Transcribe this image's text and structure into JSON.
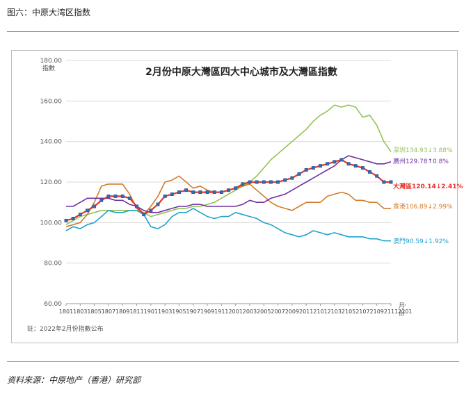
{
  "figure_caption": "图六：中原大湾区指数",
  "source_note": "资料来源：中原地产（香港）研究部",
  "chart_data": {
    "type": "line",
    "title": "2月份中原大灣區四大中心城市及大灣區指數",
    "ylabel": "指數",
    "xlabel": "月份",
    "footnote": "註：2022年2月份指數公布",
    "ylim": [
      60,
      180
    ],
    "yticks": [
      "60.00",
      "80.00",
      "100.00",
      "120.00",
      "140.00",
      "160.00",
      "180.00"
    ],
    "x_ticklabels": [
      "1801",
      "1803",
      "1805",
      "1807",
      "1809",
      "1811",
      "1901",
      "1903",
      "1905",
      "1907",
      "1909",
      "1911",
      "2001",
      "2003",
      "2005",
      "2007",
      "2009",
      "2011",
      "2101",
      "2103",
      "2105",
      "2107",
      "2109",
      "2111",
      "2201"
    ],
    "grid": true,
    "series": [
      {
        "name": "深圳",
        "color": "#92c353",
        "label": "深圳134.93↓3.88%",
        "values": [
          99,
          101,
          103,
          104,
          105,
          106,
          106,
          106,
          106,
          106,
          106,
          105,
          103,
          104,
          105,
          106,
          107,
          107,
          108,
          108,
          109,
          110,
          112,
          114,
          116,
          118,
          120,
          123,
          127,
          131,
          134,
          137,
          140,
          143,
          146,
          150,
          153,
          155,
          158,
          157,
          158,
          157,
          152,
          153,
          148,
          140,
          135
        ]
      },
      {
        "name": "廣州",
        "color": "#7030a0",
        "label": "廣州129.78↑0.8%",
        "values": [
          108,
          108,
          110,
          112,
          112,
          112,
          112,
          111,
          111,
          109,
          108,
          106,
          105,
          105,
          106,
          107,
          108,
          108,
          109,
          109,
          108,
          108,
          108,
          108,
          108,
          109,
          111,
          110,
          110,
          112,
          113,
          114,
          116,
          118,
          120,
          122,
          124,
          126,
          128,
          131,
          133,
          132,
          131,
          130,
          129,
          129,
          130
        ]
      },
      {
        "name": "大灣區",
        "color": "#e8322c",
        "label": "大灣區120.14↓2.41%",
        "values": [
          101,
          102,
          104,
          106,
          108,
          111,
          113,
          113,
          113,
          112,
          108,
          104,
          106,
          109,
          113,
          114,
          115,
          116,
          115,
          115,
          115,
          115,
          115,
          116,
          117,
          119,
          120,
          120,
          120,
          120,
          120,
          121,
          122,
          124,
          126,
          127,
          128,
          129,
          130,
          131,
          129,
          128,
          127,
          125,
          123,
          120,
          120
        ]
      },
      {
        "name": "香港",
        "color": "#d27b2a",
        "label": "香港106.89↓2.99%",
        "values": [
          98,
          99,
          100,
          104,
          110,
          118,
          119,
          119,
          119,
          114,
          107,
          104,
          108,
          113,
          120,
          121,
          123,
          120,
          117,
          118,
          116,
          115,
          115,
          116,
          117,
          118,
          119,
          116,
          113,
          110,
          108,
          107,
          106,
          108,
          110,
          110,
          110,
          113,
          114,
          115,
          114,
          111,
          111,
          110,
          110,
          107,
          107
        ]
      },
      {
        "name": "澳門",
        "color": "#1fa2cc",
        "label": "澳門90.59↓1.92%",
        "values": [
          96,
          98,
          97,
          99,
          100,
          103,
          106,
          105,
          105,
          106,
          106,
          104,
          98,
          97,
          99,
          103,
          105,
          105,
          107,
          105,
          103,
          102,
          103,
          103,
          105,
          104,
          103,
          102,
          100,
          99,
          97,
          95,
          94,
          93,
          94,
          96,
          95,
          94,
          95,
          94,
          93,
          93,
          93,
          92,
          92,
          91,
          91
        ]
      }
    ]
  }
}
